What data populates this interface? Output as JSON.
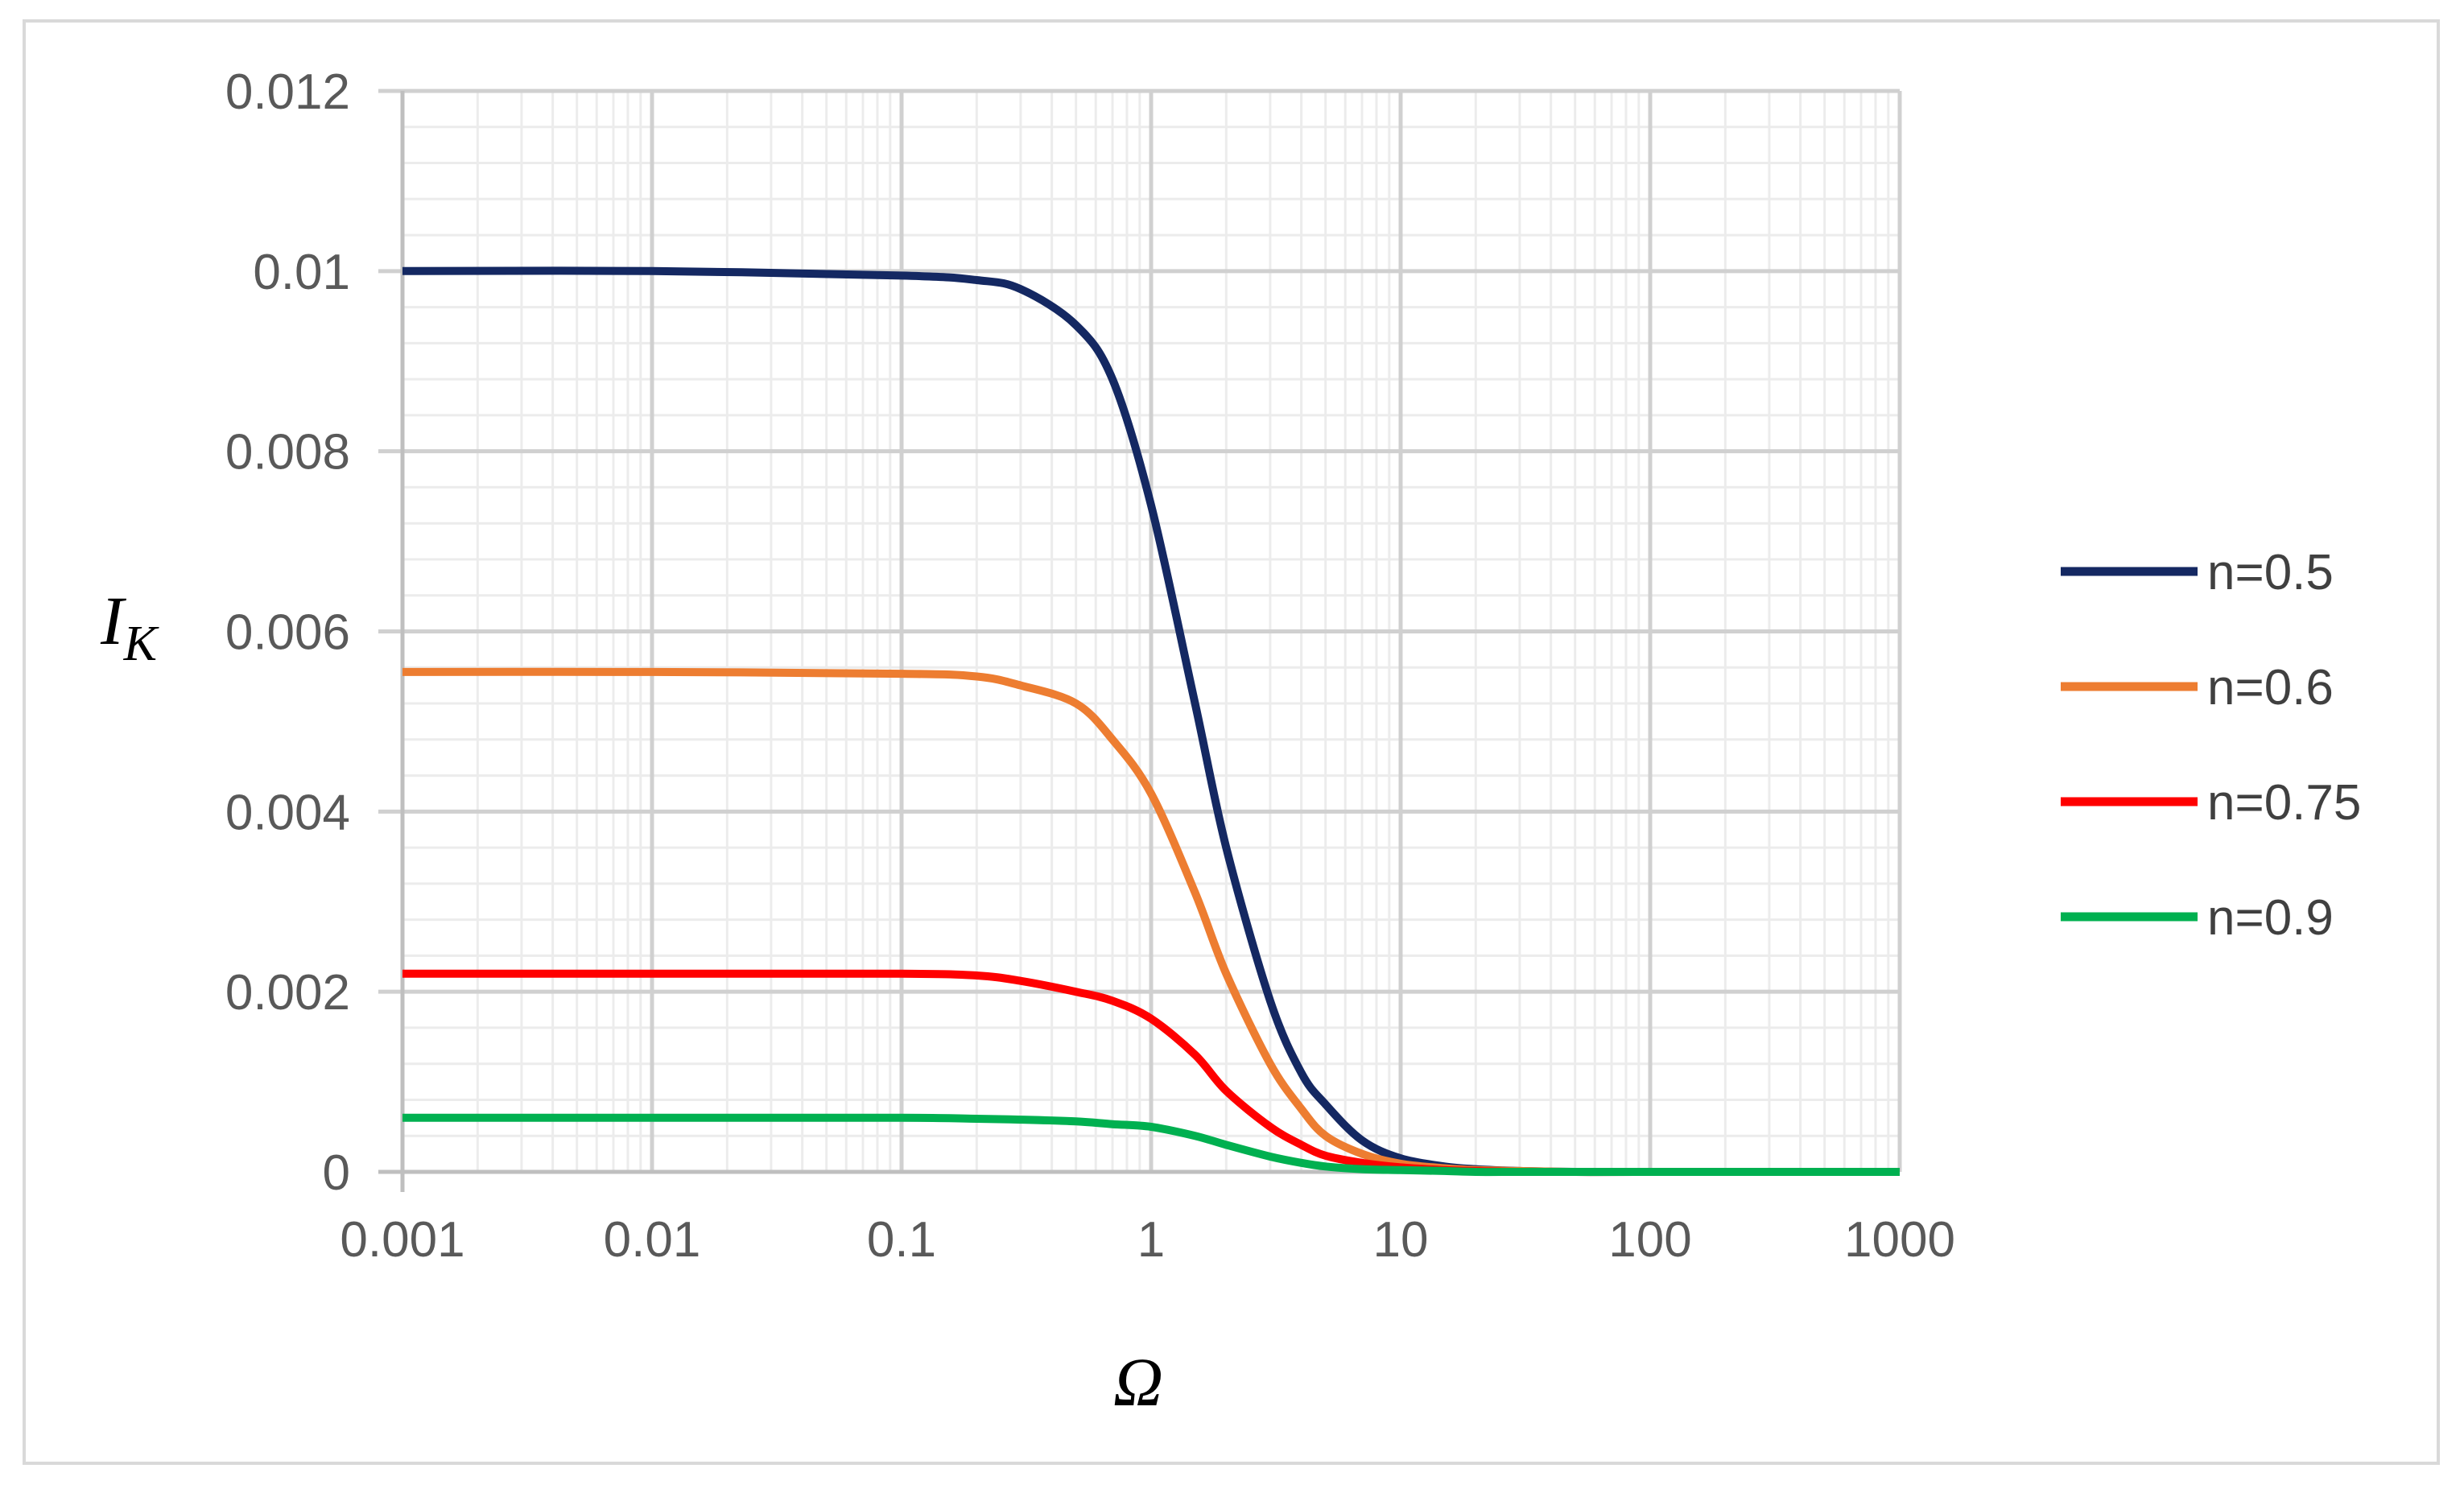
{
  "chart_data": {
    "type": "line",
    "title": "",
    "xlabel": "Ω",
    "ylabel": {
      "main": "I",
      "sub": "K"
    },
    "x_scale": "log",
    "xlim": [
      0.001,
      1000
    ],
    "ylim": [
      0,
      0.012
    ],
    "x_ticks": [
      0.001,
      0.01,
      0.1,
      1,
      10,
      100,
      1000
    ],
    "x_tick_labels": [
      "0.001",
      "0.01",
      "0.1",
      "1",
      "10",
      "100",
      "1000"
    ],
    "y_ticks": [
      0,
      0.002,
      0.004,
      0.006,
      0.008,
      0.01,
      0.012
    ],
    "y_tick_labels": [
      "0",
      "0.002",
      "0.004",
      "0.006",
      "0.008",
      "0.01",
      "0.012"
    ],
    "grid": "major and minor",
    "legend_position": "right",
    "series": [
      {
        "name": "n=0.5",
        "color": "#142862",
        "x": [
          0.001,
          0.01,
          0.1,
          0.2,
          0.3,
          0.5,
          0.7,
          1,
          1.5,
          2,
          3,
          4,
          5,
          7,
          10,
          15,
          20,
          30,
          50,
          100,
          1000
        ],
        "y": [
          0.01,
          0.01,
          0.00995,
          0.0099,
          0.0098,
          0.0094,
          0.0088,
          0.0074,
          0.0052,
          0.0036,
          0.0019,
          0.0011,
          0.00075,
          0.00035,
          0.00015,
          6e-05,
          3e-05,
          1e-05,
          0,
          0,
          0
        ]
      },
      {
        "name": "n=0.6",
        "color": "#ED7D31",
        "x": [
          0.001,
          0.01,
          0.1,
          0.2,
          0.3,
          0.5,
          0.7,
          1,
          1.5,
          2,
          3,
          4,
          5,
          7,
          10,
          15,
          20,
          30,
          50,
          100,
          1000
        ],
        "y": [
          0.00555,
          0.00555,
          0.00553,
          0.0055,
          0.0054,
          0.0052,
          0.0048,
          0.0042,
          0.0031,
          0.0022,
          0.0012,
          0.0007,
          0.0004,
          0.0002,
          9e-05,
          4e-05,
          2e-05,
          1e-05,
          0,
          0,
          0
        ]
      },
      {
        "name": "n=0.75",
        "color": "#FF0000",
        "x": [
          0.001,
          0.01,
          0.1,
          0.2,
          0.3,
          0.5,
          0.7,
          1,
          1.5,
          2,
          3,
          4,
          5,
          7,
          10,
          15,
          20,
          30,
          50,
          100,
          1000
        ],
        "y": [
          0.0022,
          0.0022,
          0.0022,
          0.00218,
          0.00212,
          0.002,
          0.0019,
          0.0017,
          0.0013,
          0.0009,
          0.0005,
          0.0003,
          0.00018,
          0.0001,
          5e-05,
          2e-05,
          1e-05,
          0,
          0,
          0,
          0
        ]
      },
      {
        "name": "n=0.9",
        "color": "#00B050",
        "x": [
          0.001,
          0.01,
          0.1,
          0.2,
          0.3,
          0.5,
          0.7,
          1,
          1.5,
          2,
          3,
          4,
          5,
          7,
          10,
          15,
          20,
          30,
          50,
          100,
          1000
        ],
        "y": [
          0.0006,
          0.0006,
          0.0006,
          0.00059,
          0.00058,
          0.00056,
          0.00053,
          0.0005,
          0.0004,
          0.0003,
          0.00017,
          0.0001,
          6e-05,
          3e-05,
          2e-05,
          1e-05,
          0,
          0,
          0,
          0,
          0
        ]
      }
    ]
  }
}
